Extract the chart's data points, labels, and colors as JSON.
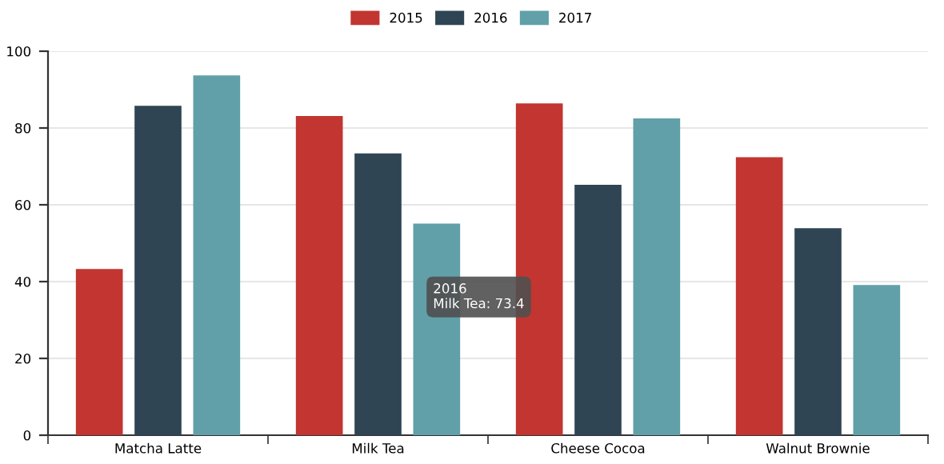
{
  "chart_data": {
    "type": "bar",
    "categories": [
      "Matcha Latte",
      "Milk Tea",
      "Cheese Cocoa",
      "Walnut Brownie"
    ],
    "series": [
      {
        "name": "2015",
        "color": "#c23531",
        "values": [
          43.3,
          83.1,
          86.4,
          72.4
        ]
      },
      {
        "name": "2016",
        "color": "#2f4554",
        "values": [
          85.8,
          73.4,
          65.2,
          53.9
        ]
      },
      {
        "name": "2017",
        "color": "#61a0a8",
        "values": [
          93.7,
          55.1,
          82.5,
          39.1
        ]
      }
    ],
    "ylim": [
      0,
      100
    ],
    "yticks": [
      0,
      20,
      40,
      60,
      80,
      100
    ],
    "grid": "y",
    "legend": "top",
    "annotations": [
      "2016\nMilk Tea: 73.4"
    ]
  }
}
